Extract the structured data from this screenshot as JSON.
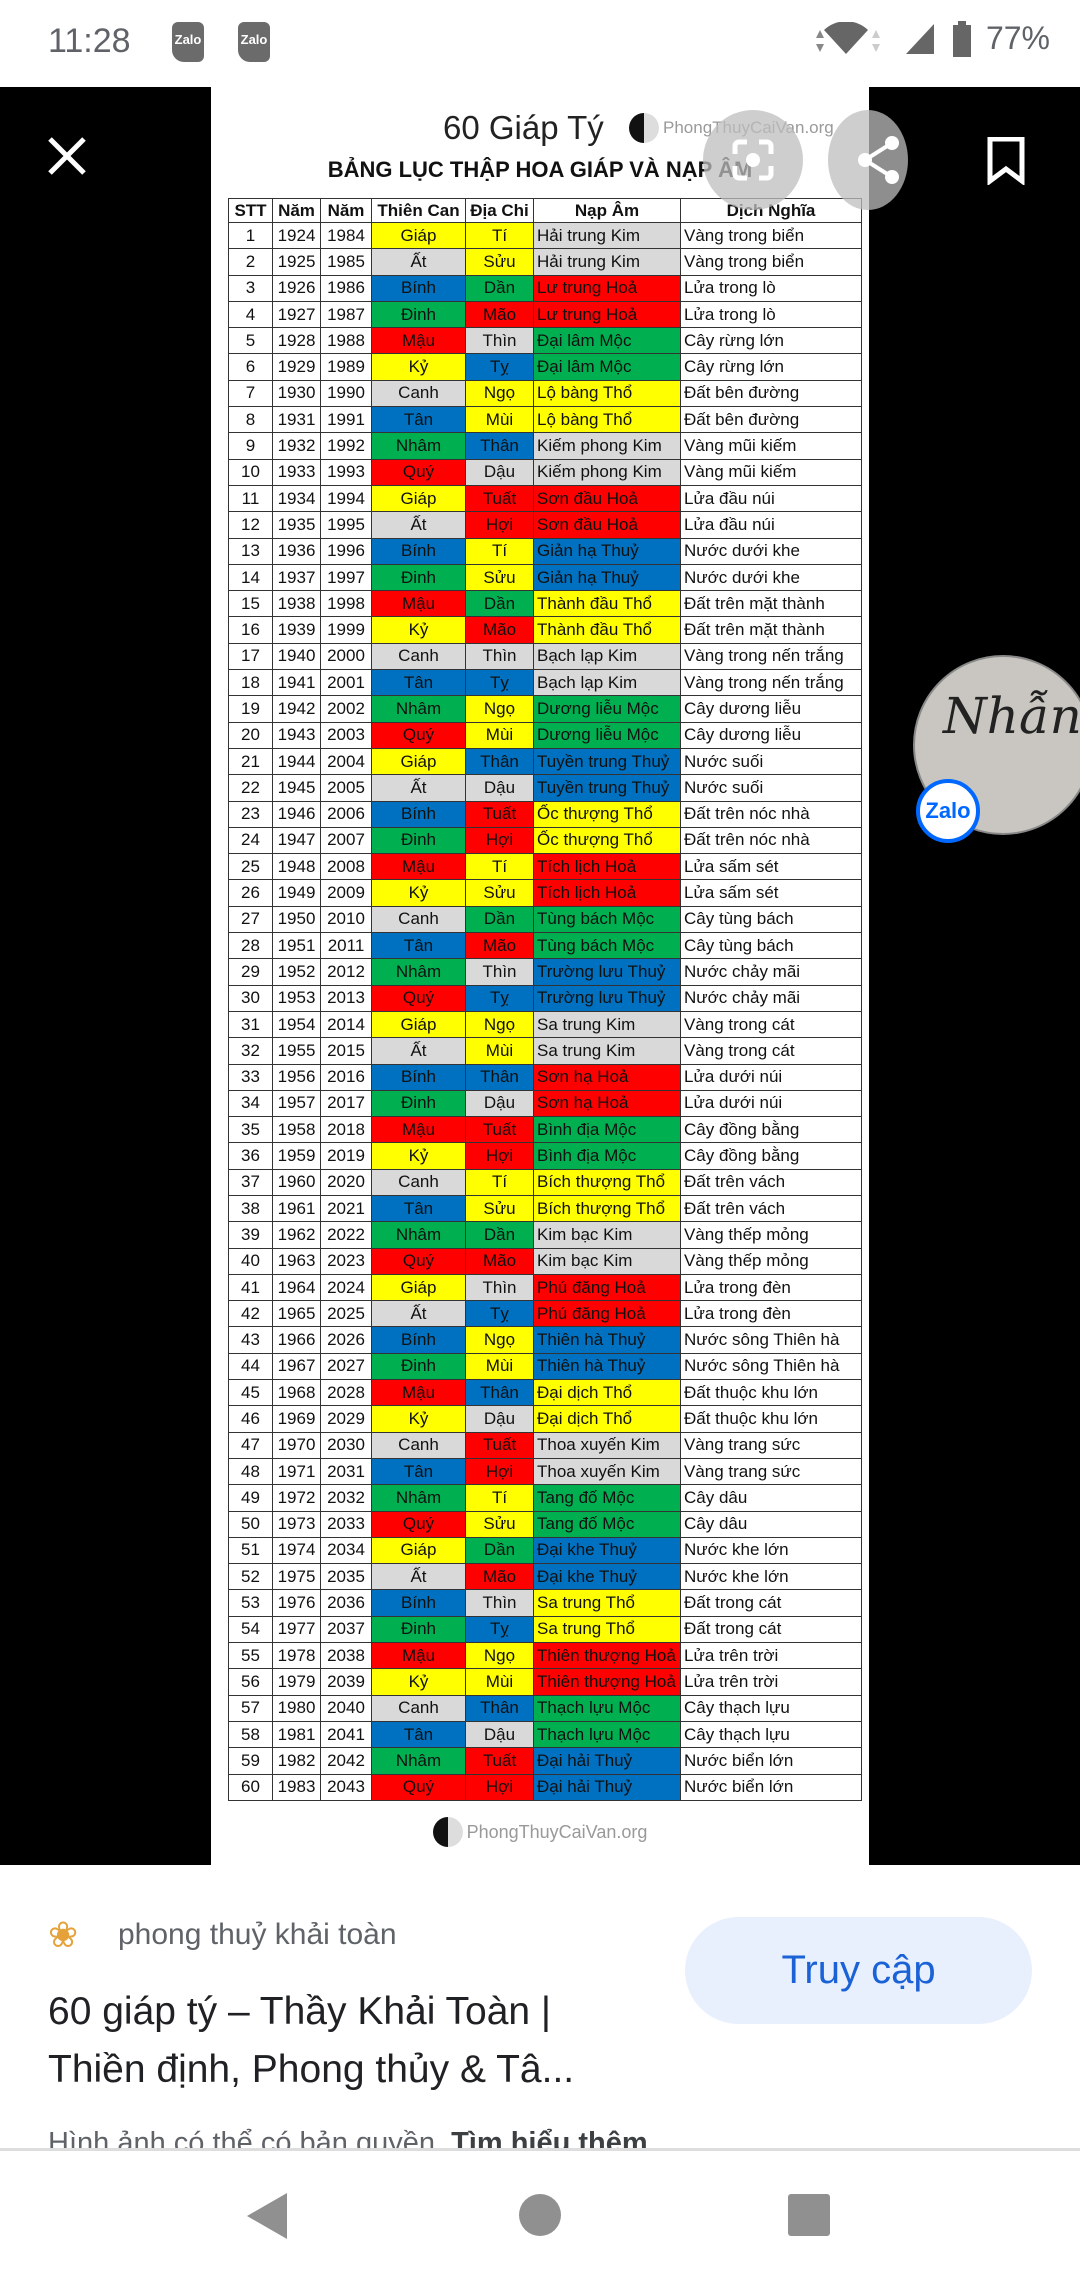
{
  "status_bar": {
    "time": "11:28",
    "notifications": [
      "Zalo",
      "Zalo"
    ],
    "battery": "77%"
  },
  "viewer": {
    "close_icon": "close-icon",
    "lens_icon": "lens-icon",
    "share_icon": "share-icon",
    "bookmark_icon": "bookmark-icon",
    "image": {
      "title": "60 Giáp Tý",
      "logo_text": "PhongThuyCaiVan.org",
      "subtitle": "BẢNG LỤC THẬP HOA GIÁP VÀ NẠP ÂM",
      "headers": [
        "STT",
        "Năm",
        "Năm",
        "Thiên Can",
        "Địa Chi",
        "Nạp Âm",
        "Dịch Nghĩa"
      ],
      "colors": {
        "yellow": "#ffff00",
        "gray": "#d9d9d9",
        "blue": "#0070c0",
        "green": "#00b050",
        "red": "#ff0000"
      },
      "can_colors": {
        "Giáp": "yellow",
        "Ất": "gray",
        "Bính": "blue",
        "Đinh": "green",
        "Mậu": "red",
        "Kỷ": "yellow",
        "Canh": "gray",
        "Tân": "blue",
        "Nhâm": "green",
        "Quý": "red"
      },
      "chi_colors": {
        "Tí": "yellow",
        "Sửu": "yellow",
        "Dần": "green",
        "Mão": "red",
        "Thìn": "gray",
        "Tỵ": "blue",
        "Ngọ": "yellow",
        "Mùi": "yellow",
        "Thân": "blue",
        "Dậu": "gray",
        "Tuất": "red",
        "Hợi": "red"
      },
      "element_colors": {
        "Kim": "gray",
        "Hoả": "red",
        "Mộc": "green",
        "Thổ": "yellow",
        "Thuỷ": "blue"
      },
      "rows": [
        [
          "1",
          "1924",
          "1984",
          "Giáp",
          "Tí",
          "Hải trung Kim",
          "Vàng trong biển"
        ],
        [
          "2",
          "1925",
          "1985",
          "Ất",
          "Sửu",
          "Hải trung Kim",
          "Vàng trong biển"
        ],
        [
          "3",
          "1926",
          "1986",
          "Bính",
          "Dần",
          "Lư trung Hoả",
          "Lửa trong lò"
        ],
        [
          "4",
          "1927",
          "1987",
          "Đinh",
          "Mão",
          "Lư trung Hoả",
          "Lửa trong lò"
        ],
        [
          "5",
          "1928",
          "1988",
          "Mậu",
          "Thìn",
          "Đại lâm Mộc",
          "Cây rừng lớn"
        ],
        [
          "6",
          "1929",
          "1989",
          "Kỷ",
          "Tỵ",
          "Đại lâm Mộc",
          "Cây rừng lớn"
        ],
        [
          "7",
          "1930",
          "1990",
          "Canh",
          "Ngọ",
          "Lộ bàng Thổ",
          "Đất bên đường"
        ],
        [
          "8",
          "1931",
          "1991",
          "Tân",
          "Mùi",
          "Lộ bàng Thổ",
          "Đất bên đường"
        ],
        [
          "9",
          "1932",
          "1992",
          "Nhâm",
          "Thân",
          "Kiếm phong Kim",
          "Vàng mũi kiếm"
        ],
        [
          "10",
          "1933",
          "1993",
          "Quý",
          "Dậu",
          "Kiếm phong Kim",
          "Vàng mũi kiếm"
        ],
        [
          "11",
          "1934",
          "1994",
          "Giáp",
          "Tuất",
          "Sơn đầu Hoả",
          "Lửa đầu núi"
        ],
        [
          "12",
          "1935",
          "1995",
          "Ất",
          "Hợi",
          "Sơn đầu Hoả",
          "Lửa đầu núi"
        ],
        [
          "13",
          "1936",
          "1996",
          "Bính",
          "Tí",
          "Giản hạ Thuỷ",
          "Nước dưới khe"
        ],
        [
          "14",
          "1937",
          "1997",
          "Đinh",
          "Sửu",
          "Giản hạ Thuỷ",
          "Nước dưới khe"
        ],
        [
          "15",
          "1938",
          "1998",
          "Mậu",
          "Dần",
          "Thành đầu Thổ",
          "Đất trên mặt thành"
        ],
        [
          "16",
          "1939",
          "1999",
          "Kỷ",
          "Mão",
          "Thành đầu Thổ",
          "Đất trên mặt thành"
        ],
        [
          "17",
          "1940",
          "2000",
          "Canh",
          "Thìn",
          "Bạch lạp Kim",
          "Vàng trong nến trắng"
        ],
        [
          "18",
          "1941",
          "2001",
          "Tân",
          "Tỵ",
          "Bạch lạp Kim",
          "Vàng trong nến trắng"
        ],
        [
          "19",
          "1942",
          "2002",
          "Nhâm",
          "Ngọ",
          "Dương liễu Mộc",
          "Cây dương liễu"
        ],
        [
          "20",
          "1943",
          "2003",
          "Quý",
          "Mùi",
          "Dương liễu Mộc",
          "Cây dương liễu"
        ],
        [
          "21",
          "1944",
          "2004",
          "Giáp",
          "Thân",
          "Tuyền trung Thuỷ",
          "Nước suối"
        ],
        [
          "22",
          "1945",
          "2005",
          "Ất",
          "Dậu",
          "Tuyền trung Thuỷ",
          "Nước suối"
        ],
        [
          "23",
          "1946",
          "2006",
          "Bính",
          "Tuất",
          "Ốc thượng Thổ",
          "Đất trên nóc nhà"
        ],
        [
          "24",
          "1947",
          "2007",
          "Đinh",
          "Hợi",
          "Ốc thượng Thổ",
          "Đất trên nóc nhà"
        ],
        [
          "25",
          "1948",
          "2008",
          "Mậu",
          "Tí",
          "Tích lịch Hoả",
          "Lửa sấm sét"
        ],
        [
          "26",
          "1949",
          "2009",
          "Kỷ",
          "Sửu",
          "Tích lịch Hoả",
          "Lửa sấm sét"
        ],
        [
          "27",
          "1950",
          "2010",
          "Canh",
          "Dần",
          "Tùng bách Mộc",
          "Cây tùng bách"
        ],
        [
          "28",
          "1951",
          "2011",
          "Tân",
          "Mão",
          "Tùng bách Mộc",
          "Cây tùng bách"
        ],
        [
          "29",
          "1952",
          "2012",
          "Nhâm",
          "Thìn",
          "Trường lưu Thuỷ",
          "Nước chảy mãi"
        ],
        [
          "30",
          "1953",
          "2013",
          "Quý",
          "Tỵ",
          "Trường lưu Thuỷ",
          "Nước chảy mãi"
        ],
        [
          "31",
          "1954",
          "2014",
          "Giáp",
          "Ngọ",
          "Sa trung Kim",
          "Vàng trong cát"
        ],
        [
          "32",
          "1955",
          "2015",
          "Ất",
          "Mùi",
          "Sa trung Kim",
          "Vàng trong cát"
        ],
        [
          "33",
          "1956",
          "2016",
          "Bính",
          "Thân",
          "Sơn hạ Hoả",
          "Lửa dưới núi"
        ],
        [
          "34",
          "1957",
          "2017",
          "Đinh",
          "Dậu",
          "Sơn hạ Hoả",
          "Lửa dưới núi"
        ],
        [
          "35",
          "1958",
          "2018",
          "Mậu",
          "Tuất",
          "Bình địa Mộc",
          "Cây đồng bằng"
        ],
        [
          "36",
          "1959",
          "2019",
          "Kỷ",
          "Hợi",
          "Bình địa Mộc",
          "Cây đồng bằng"
        ],
        [
          "37",
          "1960",
          "2020",
          "Canh",
          "Tí",
          "Bích thượng Thổ",
          "Đất trên vách"
        ],
        [
          "38",
          "1961",
          "2021",
          "Tân",
          "Sửu",
          "Bích thượng Thổ",
          "Đất trên vách"
        ],
        [
          "39",
          "1962",
          "2022",
          "Nhâm",
          "Dần",
          "Kim bạc Kim",
          "Vàng thếp mỏng"
        ],
        [
          "40",
          "1963",
          "2023",
          "Quý",
          "Mão",
          "Kim bạc Kim",
          "Vàng thếp mỏng"
        ],
        [
          "41",
          "1964",
          "2024",
          "Giáp",
          "Thìn",
          "Phú đăng Hoả",
          "Lửa trong đèn"
        ],
        [
          "42",
          "1965",
          "2025",
          "Ất",
          "Tỵ",
          "Phú đăng Hoả",
          "Lửa trong đèn"
        ],
        [
          "43",
          "1966",
          "2026",
          "Bính",
          "Ngọ",
          "Thiên hà Thuỷ",
          "Nước sông Thiên hà"
        ],
        [
          "44",
          "1967",
          "2027",
          "Đinh",
          "Mùi",
          "Thiên hà Thuỷ",
          "Nước sông Thiên hà"
        ],
        [
          "45",
          "1968",
          "2028",
          "Mậu",
          "Thân",
          "Đại dịch Thổ",
          "Đất thuộc khu lớn"
        ],
        [
          "46",
          "1969",
          "2029",
          "Kỷ",
          "Dậu",
          "Đại dịch Thổ",
          "Đất thuộc khu lớn"
        ],
        [
          "47",
          "1970",
          "2030",
          "Canh",
          "Tuất",
          "Thoa xuyến Kim",
          "Vàng trang sức"
        ],
        [
          "48",
          "1971",
          "2031",
          "Tân",
          "Hợi",
          "Thoa xuyến Kim",
          "Vàng trang sức"
        ],
        [
          "49",
          "1972",
          "2032",
          "Nhâm",
          "Tí",
          "Tang đố Mộc",
          "Cây dâu"
        ],
        [
          "50",
          "1973",
          "2033",
          "Quý",
          "Sửu",
          "Tang đố Mộc",
          "Cây dâu"
        ],
        [
          "51",
          "1974",
          "2034",
          "Giáp",
          "Dần",
          "Đại khe Thuỷ",
          "Nước khe lớn"
        ],
        [
          "52",
          "1975",
          "2035",
          "Ất",
          "Mão",
          "Đại khe Thuỷ",
          "Nước khe lớn"
        ],
        [
          "53",
          "1976",
          "2036",
          "Bính",
          "Thìn",
          "Sa trung Thổ",
          "Đất trong cát"
        ],
        [
          "54",
          "1977",
          "2037",
          "Đinh",
          "Tỵ",
          "Sa trung Thổ",
          "Đất trong cát"
        ],
        [
          "55",
          "1978",
          "2038",
          "Mậu",
          "Ngọ",
          "Thiên thượng Hoả",
          "Lửa trên trời"
        ],
        [
          "56",
          "1979",
          "2039",
          "Kỷ",
          "Mùi",
          "Thiên thượng Hoả",
          "Lửa trên trời"
        ],
        [
          "57",
          "1980",
          "2040",
          "Canh",
          "Thân",
          "Thạch lựu Mộc",
          "Cây thạch lựu"
        ],
        [
          "58",
          "1981",
          "2041",
          "Tân",
          "Dậu",
          "Thạch lựu Mộc",
          "Cây thạch lựu"
        ],
        [
          "59",
          "1982",
          "2042",
          "Nhâm",
          "Tuất",
          "Đại hải Thuỷ",
          "Nước biển lớn"
        ],
        [
          "60",
          "1983",
          "2043",
          "Quý",
          "Hợi",
          "Đại hải Thuỷ",
          "Nước biển lớn"
        ]
      ]
    },
    "chat_head": {
      "badge": "Zalo"
    }
  },
  "sheet": {
    "source": "phong thuỷ khải toàn",
    "title": "60 giáp tý – Thầy Khải Toàn | Thiền định, Phong thủy & Tâ...",
    "visit_button": "Truy cập",
    "copyright": "Hình ảnh có thể có bản quyền.",
    "learn_more": "Tìm hiểu thêm"
  },
  "nav": {
    "back": "back-icon",
    "home": "home-icon",
    "recents": "recents-icon"
  }
}
